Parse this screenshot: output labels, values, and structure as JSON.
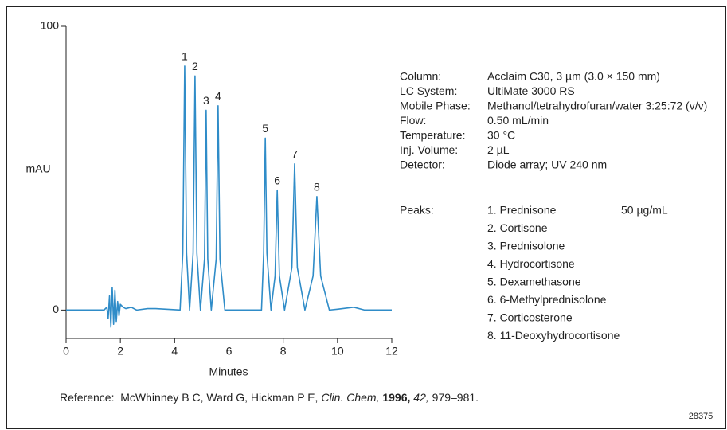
{
  "chart_data": {
    "type": "line",
    "ylabel": "mAU",
    "xlabel": "Minutes",
    "xlim": [
      0,
      12
    ],
    "xticks": [
      0,
      2,
      4,
      6,
      8,
      10,
      12
    ],
    "ylim": [
      -10,
      100
    ],
    "yticks": [
      0,
      100
    ],
    "color": "#2f8cc8",
    "x": [
      0,
      1.4,
      1.5,
      1.55,
      1.6,
      1.65,
      1.7,
      1.75,
      1.8,
      1.85,
      1.9,
      1.95,
      2.0,
      2.1,
      2.2,
      2.4,
      2.6,
      3.0,
      3.3,
      4.2,
      4.3,
      4.37,
      4.44,
      4.55,
      4.68,
      4.75,
      4.82,
      4.95,
      5.1,
      5.16,
      5.22,
      5.35,
      5.53,
      5.6,
      5.67,
      5.85,
      7.2,
      7.28,
      7.34,
      7.4,
      7.55,
      7.7,
      7.78,
      7.86,
      8.05,
      8.32,
      8.42,
      8.52,
      8.8,
      9.1,
      9.24,
      9.38,
      9.7,
      10.0,
      10.6,
      11.0,
      12
    ],
    "values": [
      0,
      0,
      1,
      -3,
      5,
      -6,
      8,
      -5,
      7,
      -4,
      3,
      -2,
      2,
      1,
      0.5,
      1,
      0,
      0.5,
      0.5,
      0,
      20,
      86,
      20,
      0,
      20,
      82.5,
      20,
      0,
      18,
      70.4,
      18,
      0,
      18,
      72,
      18,
      0,
      0,
      20,
      60.6,
      20,
      0,
      12,
      42.3,
      12,
      0,
      15,
      51.5,
      15,
      0,
      12,
      40,
      12,
      0,
      0.3,
      1,
      0,
      0
    ],
    "peak_labels": [
      "1",
      "2",
      "3",
      "4",
      "5",
      "6",
      "7",
      "8"
    ],
    "method": [
      [
        "Column:",
        "Acclaim C30, 3 µm (3.0 × 150 mm)"
      ],
      [
        "LC System:",
        "UltiMate 3000 RS"
      ],
      [
        "Mobile Phase:",
        "Methanol/tetrahydrofuran/water 3:25:72 (v/v)"
      ],
      [
        "Flow:",
        "0.50 mL/min"
      ],
      [
        "Temperature:",
        "30 °C"
      ],
      [
        "Inj. Volume:",
        "2 µL"
      ],
      [
        "Detector:",
        "Diode array; UV 240 nm"
      ]
    ],
    "peaks_label": "Peaks:",
    "peaks": [
      "1. Prednisone",
      "2. Cortisone",
      "3. Prednisolone",
      "4. Hydrocortisone",
      "5. Dexamethasone",
      "6. 6-Methylprednisolone",
      "7. Corticosterone",
      "8. 11-Deoxyhydrocortisone"
    ],
    "concentration": "50 µg/mL",
    "reference": [
      {
        "text": "Reference:  McWhinney B C, Ward G, Hickman P E, ",
        "style": "normal"
      },
      {
        "text": "Clin. Chem,",
        "style": "italic"
      },
      {
        "text": " ",
        "style": "normal"
      },
      {
        "text": "1996,",
        "style": "bold"
      },
      {
        "text": " ",
        "style": "normal"
      },
      {
        "text": "42,",
        "style": "italic"
      },
      {
        "text": " 979–981.",
        "style": "normal"
      }
    ],
    "figure_id": "28375"
  }
}
